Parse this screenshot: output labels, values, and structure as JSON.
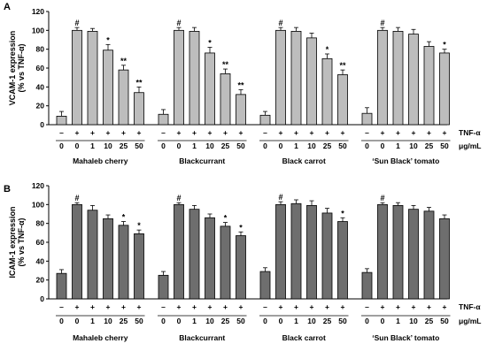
{
  "chart_data": [
    {
      "type": "bar",
      "panel_letter": "A",
      "ylabel_line1": "VCAM-1 expression",
      "ylabel_line2": "(% vs TNF-α)",
      "ylim": [
        0,
        120
      ],
      "yticks": [
        "0",
        "20",
        "40",
        "60",
        "80",
        "100",
        "120"
      ],
      "bar_color": "#bdbdbd",
      "groups": [
        {
          "name": "Mahaleb cherry",
          "tnf": [
            "–",
            "+",
            "+",
            "+",
            "+",
            "+"
          ],
          "dose": [
            "0",
            "0",
            "1",
            "10",
            "25",
            "50"
          ],
          "values": [
            9,
            100,
            99,
            79,
            58,
            34
          ],
          "errors": [
            5,
            3,
            3,
            6,
            5,
            6
          ],
          "sig": [
            "",
            "#",
            "",
            "*",
            "**",
            "**"
          ]
        },
        {
          "name": "Blackcurrant",
          "tnf": [
            "–",
            "+",
            "+",
            "+",
            "+",
            "+"
          ],
          "dose": [
            "0",
            "0",
            "1",
            "10",
            "25",
            "50"
          ],
          "values": [
            11,
            100,
            99,
            76,
            54,
            32
          ],
          "errors": [
            5,
            3,
            4,
            6,
            5,
            5
          ],
          "sig": [
            "",
            "#",
            "",
            "*",
            "**",
            "**"
          ]
        },
        {
          "name": "Black carrot",
          "tnf": [
            "–",
            "+",
            "+",
            "+",
            "+",
            "+"
          ],
          "dose": [
            "0",
            "0",
            "1",
            "10",
            "25",
            "50"
          ],
          "values": [
            10,
            100,
            99,
            92,
            70,
            53
          ],
          "errors": [
            4,
            3,
            4,
            5,
            5,
            5
          ],
          "sig": [
            "",
            "#",
            "",
            "",
            "*",
            "**"
          ]
        },
        {
          "name": "‘Sun Black’ tomato",
          "tnf": [
            "–",
            "+",
            "+",
            "+",
            "+",
            "+"
          ],
          "dose": [
            "0",
            "0",
            "1",
            "10",
            "25",
            "50"
          ],
          "values": [
            12,
            100,
            99,
            96,
            83,
            76
          ],
          "errors": [
            6,
            3,
            4,
            5,
            5,
            4
          ],
          "sig": [
            "",
            "#",
            "",
            "",
            "",
            "*"
          ]
        }
      ],
      "row_label_tnf": "TNF-α",
      "row_label_dose": "μg/mL"
    },
    {
      "type": "bar",
      "panel_letter": "B",
      "ylabel_line1": "ICAM-1 expression",
      "ylabel_line2": "(% vs TNF-α)",
      "ylim": [
        0,
        120
      ],
      "yticks": [
        "0",
        "20",
        "40",
        "60",
        "80",
        "100",
        "120"
      ],
      "bar_color": "#6e6e6e",
      "groups": [
        {
          "name": "Mahaleb cherry",
          "tnf": [
            "–",
            "+",
            "+",
            "+",
            "+",
            "+"
          ],
          "dose": [
            "0",
            "0",
            "1",
            "10",
            "25",
            "50"
          ],
          "values": [
            27,
            100,
            94,
            85,
            78,
            69
          ],
          "errors": [
            4,
            2,
            5,
            4,
            4,
            4
          ],
          "sig": [
            "",
            "#",
            "",
            "",
            "*",
            "*"
          ]
        },
        {
          "name": "Blackcurrant",
          "tnf": [
            "–",
            "+",
            "+",
            "+",
            "+",
            "+"
          ],
          "dose": [
            "0",
            "0",
            "1",
            "10",
            "25",
            "50"
          ],
          "values": [
            25,
            100,
            95,
            86,
            77,
            67
          ],
          "errors": [
            4,
            2,
            4,
            4,
            4,
            4
          ],
          "sig": [
            "",
            "#",
            "",
            "",
            "*",
            "*"
          ]
        },
        {
          "name": "Black carrot",
          "tnf": [
            "–",
            "+",
            "+",
            "+",
            "+",
            "+"
          ],
          "dose": [
            "0",
            "0",
            "1",
            "10",
            "25",
            "50"
          ],
          "values": [
            29,
            100,
            101,
            99,
            91,
            82
          ],
          "errors": [
            4,
            3,
            4,
            5,
            5,
            4
          ],
          "sig": [
            "",
            "#",
            "",
            "",
            "",
            "*"
          ]
        },
        {
          "name": "‘Sun Black’ tomato",
          "tnf": [
            "–",
            "+",
            "+",
            "+",
            "+",
            "+"
          ],
          "dose": [
            "0",
            "0",
            "1",
            "10",
            "25",
            "50"
          ],
          "values": [
            28,
            100,
            99,
            95,
            93,
            85
          ],
          "errors": [
            4,
            2,
            3,
            4,
            4,
            4
          ],
          "sig": [
            "",
            "#",
            "",
            "",
            "",
            ""
          ]
        }
      ],
      "row_label_tnf": "TNF-α",
      "row_label_dose": "μg/mL"
    }
  ]
}
